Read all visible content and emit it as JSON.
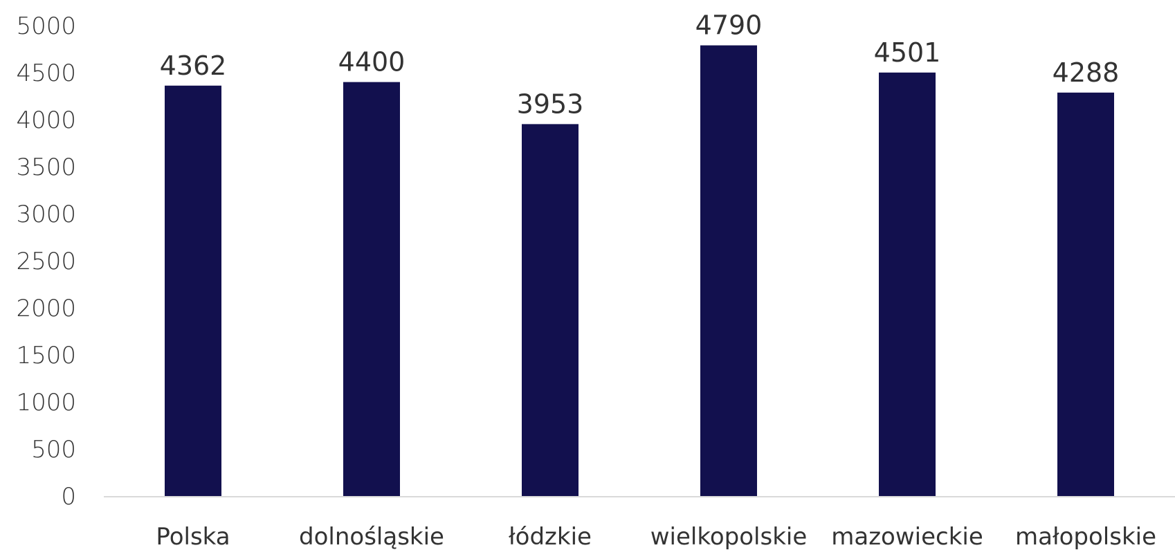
{
  "chart_data": {
    "type": "bar",
    "categories": [
      "Polska",
      "dolnośląskie",
      "łódzkie",
      "wielkopolskie",
      "mazowieckie",
      "małopolskie"
    ],
    "values": [
      4362,
      4400,
      3953,
      4790,
      4501,
      4288
    ],
    "data_labels": [
      "4362",
      "4400",
      "3953",
      "4790",
      "4501",
      "4288"
    ],
    "title": "",
    "xlabel": "",
    "ylabel": "",
    "ylim": [
      0,
      5000
    ],
    "yticks": [
      0,
      500,
      1000,
      1500,
      2000,
      2500,
      3000,
      3500,
      4000,
      4500,
      5000
    ],
    "ytick_labels": [
      "0",
      "500",
      "1000",
      "1500",
      "2000",
      "2500",
      "3000",
      "3500",
      "4000",
      "4500",
      "5000"
    ],
    "grid": false,
    "legend": "none",
    "bar_color": "#12104e",
    "axis_color": "#d9d9d9"
  }
}
